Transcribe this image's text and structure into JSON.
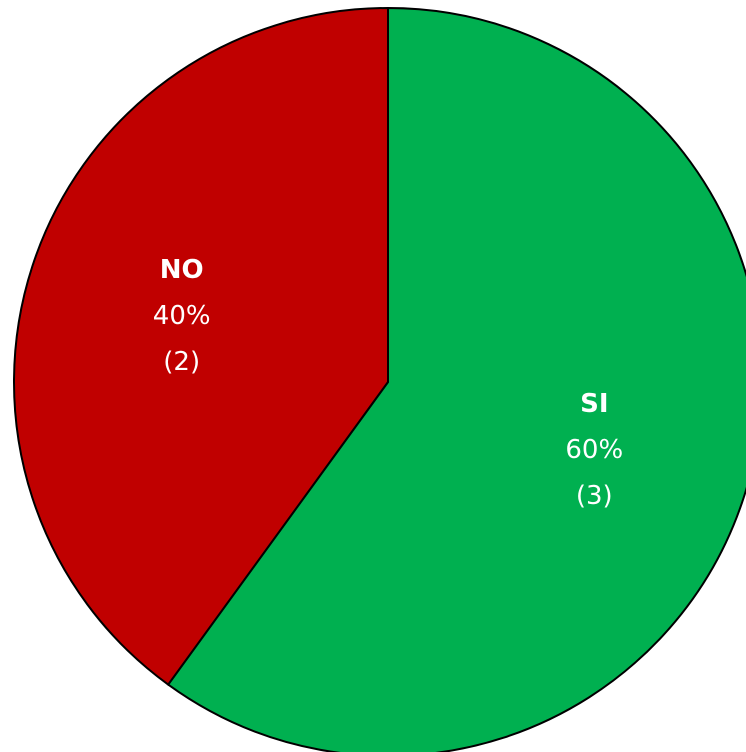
{
  "chart_data": {
    "type": "pie",
    "slices": [
      {
        "name": "SI",
        "percent_label": "60%",
        "count_label": "(3)",
        "value": 3,
        "color": "#00b050"
      },
      {
        "name": "NO",
        "percent_label": "40%",
        "count_label": "(2)",
        "value": 2,
        "color": "#c00000"
      }
    ],
    "start_angle_deg": 0,
    "direction": "clockwise",
    "legend": "none"
  }
}
